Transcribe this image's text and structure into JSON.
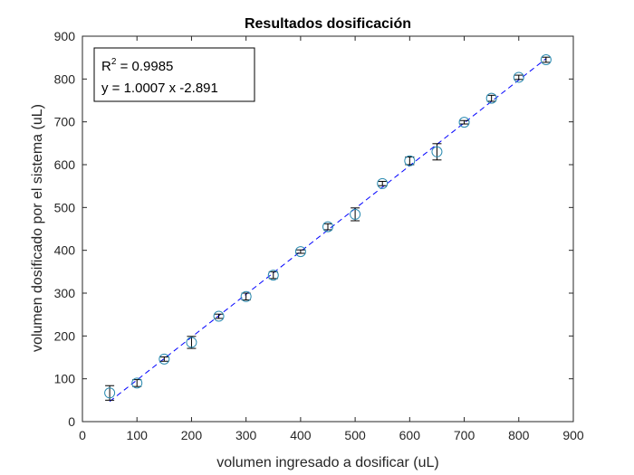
{
  "chart_data": {
    "type": "scatter",
    "title": "Resultados dosificación",
    "xlabel": "volumen ingresado a dosificar (uL)",
    "ylabel": "volumen dosificado por el sistema (uL)",
    "xlim": [
      0,
      900
    ],
    "ylim": [
      0,
      900
    ],
    "xticks": [
      0,
      100,
      200,
      300,
      400,
      500,
      600,
      700,
      800,
      900
    ],
    "yticks": [
      0,
      100,
      200,
      300,
      400,
      500,
      600,
      700,
      800,
      900
    ],
    "xtick_labels": [
      "0",
      "100",
      "200",
      "300",
      "400",
      "500",
      "600",
      "700",
      "800",
      "900"
    ],
    "ytick_labels": [
      "0",
      "100",
      "200",
      "300",
      "400",
      "500",
      "600",
      "700",
      "800",
      "900"
    ],
    "grid": false,
    "series": [
      {
        "marker": "circle",
        "x": [
          50,
          100,
          150,
          200,
          250,
          300,
          350,
          400,
          450,
          500,
          550,
          600,
          650,
          700,
          750,
          800,
          850
        ],
        "y": [
          67,
          90,
          146,
          185,
          246,
          292,
          342,
          397,
          455,
          484,
          556,
          609,
          630,
          699,
          755,
          804,
          845
        ],
        "err": [
          17,
          8,
          5,
          14,
          5,
          8,
          8,
          4,
          7,
          15,
          5,
          9,
          19,
          4,
          7,
          5,
          6
        ],
        "color": "#2a8ab0",
        "errorbar_color": "#000000"
      }
    ],
    "fit": {
      "slope": 1.0007,
      "intercept": -2.891,
      "x_range": [
        50,
        850
      ],
      "style": "dashed",
      "color": "#0000ff"
    },
    "annotation": {
      "r2_prefix": "R",
      "r2_sup": "2",
      "r2_value": " = 0.9985",
      "equation": "y = 1.0007 x  -2.891",
      "placement": "top-left"
    }
  }
}
